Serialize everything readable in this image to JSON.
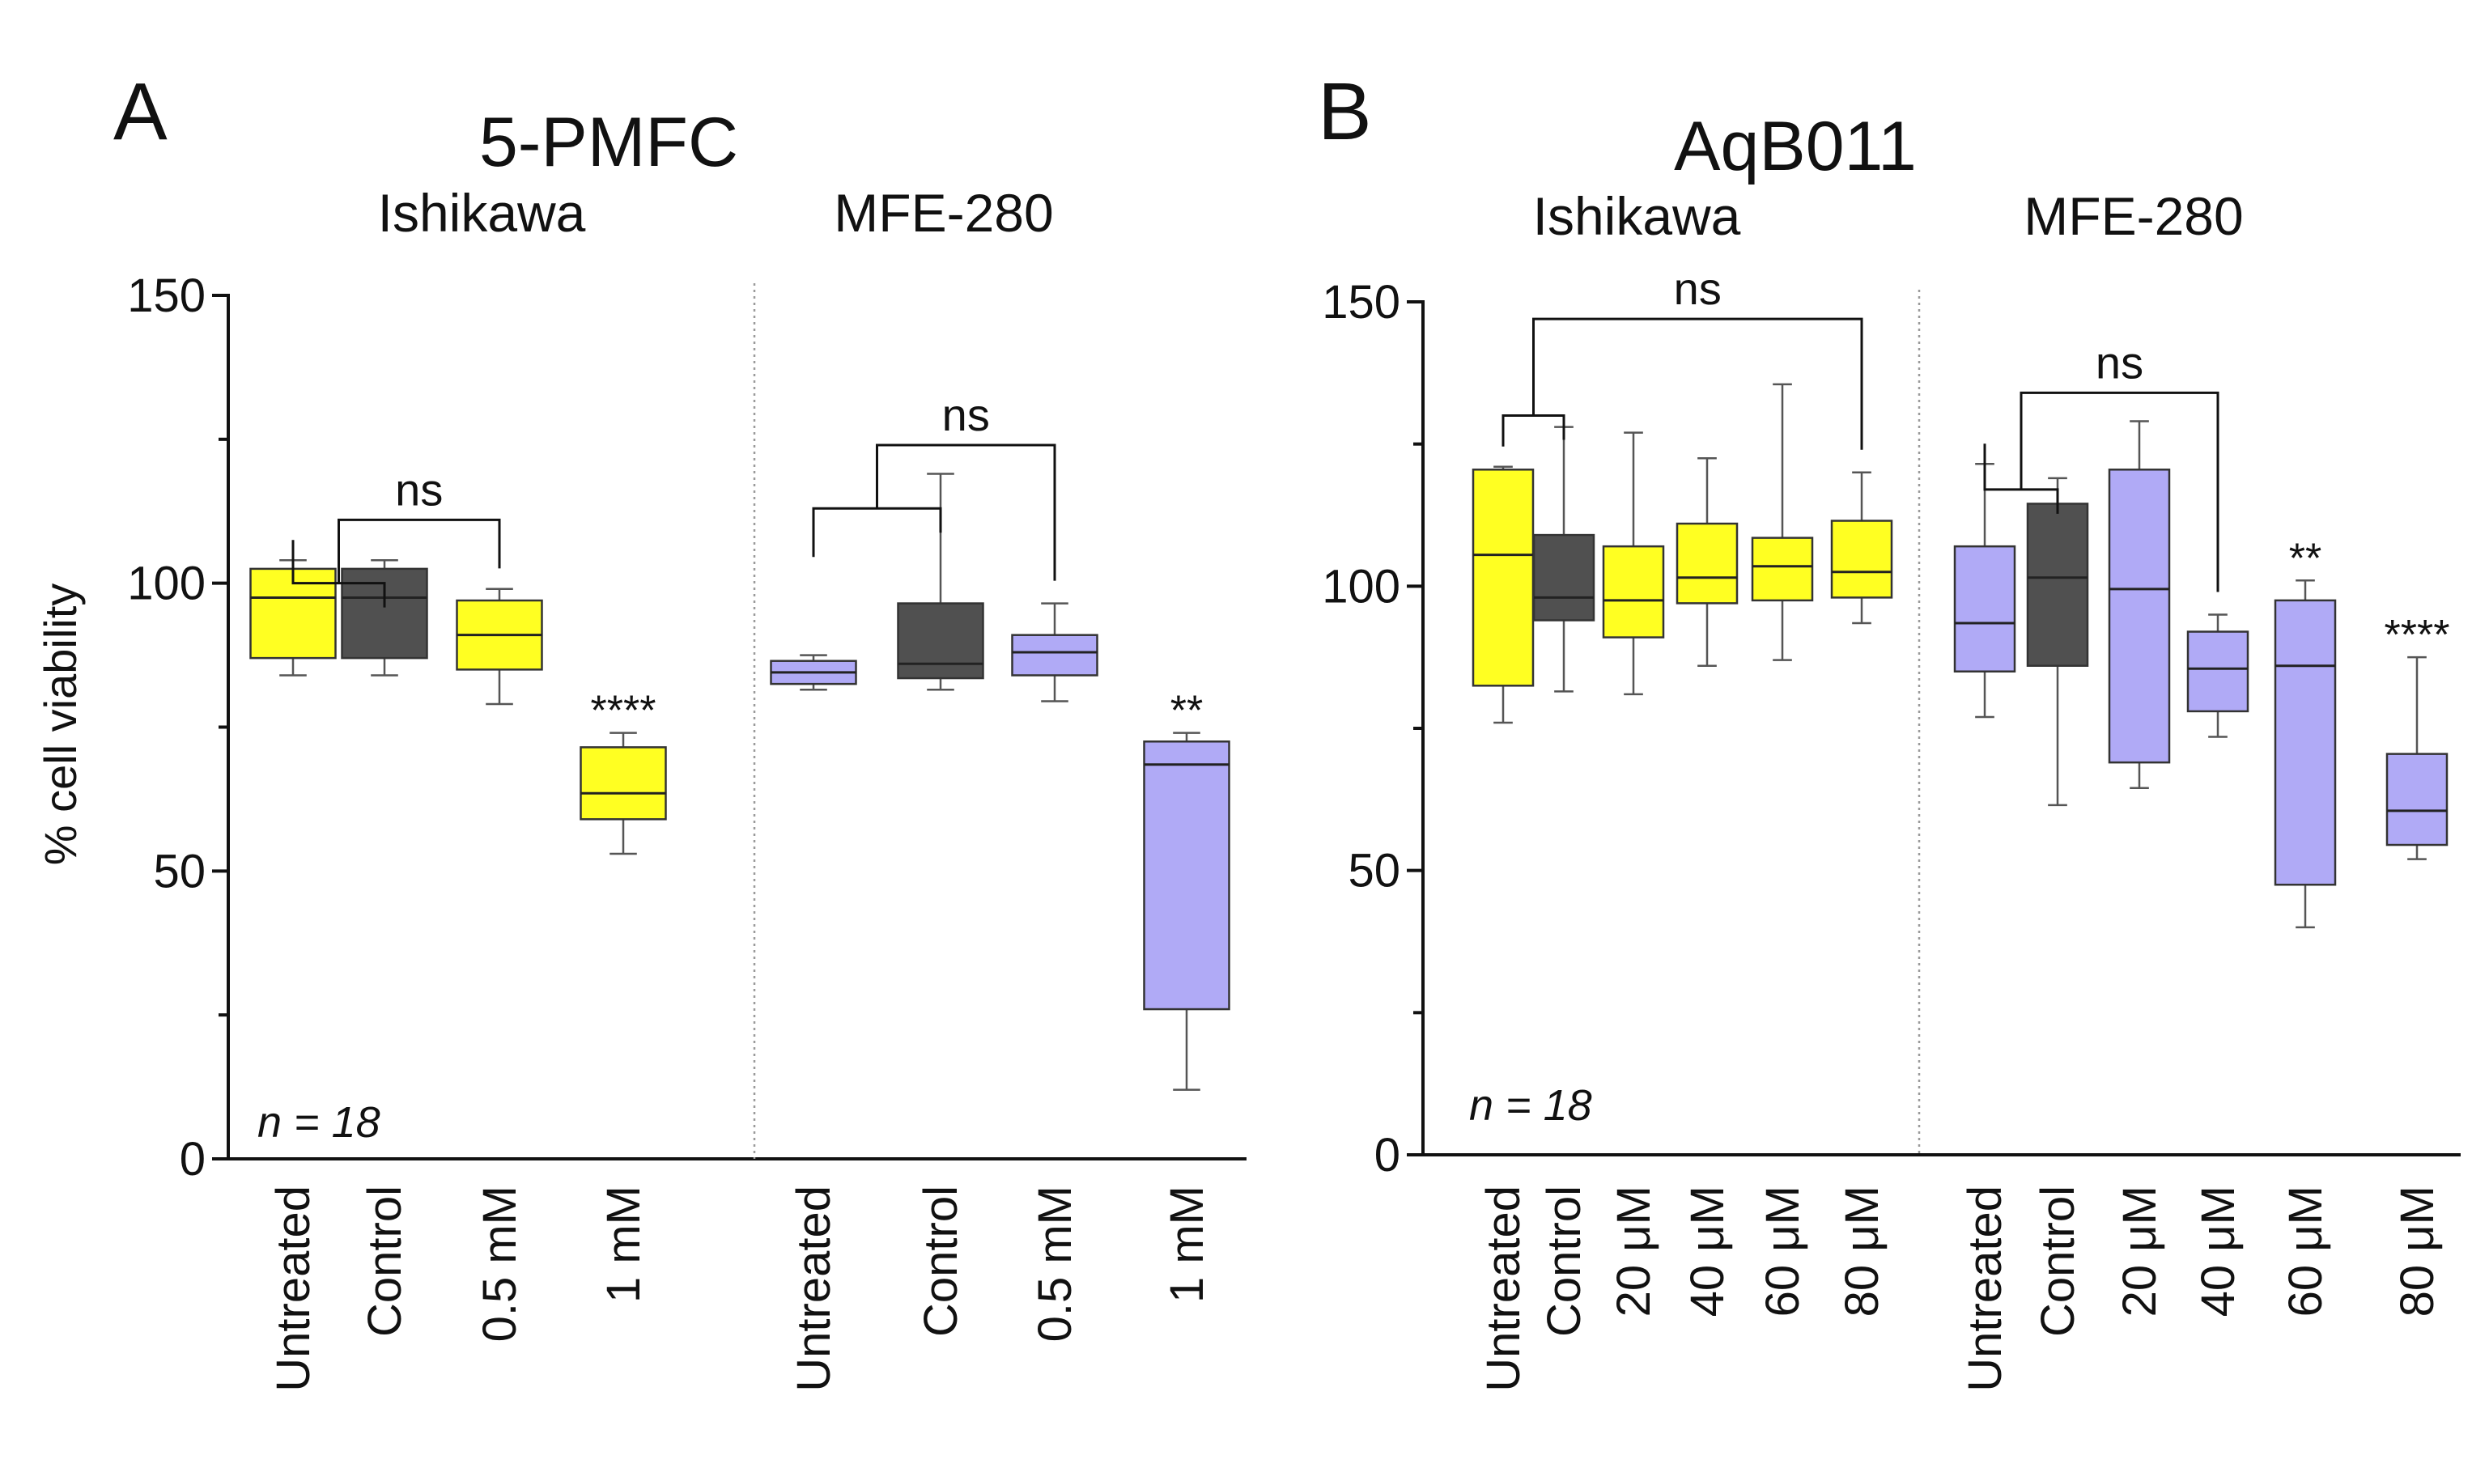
{
  "figure": {
    "panel_labels": [
      "A",
      "B"
    ],
    "n_label": "n = 18",
    "colors": {
      "yellow": "#ffff22",
      "gray": "#505050",
      "lavender": "#b0aaf6"
    }
  },
  "chart_data": [
    {
      "type": "box",
      "panel": "A",
      "title": "5-PMFC",
      "ylabel": "% cell viability",
      "ylim": [
        0,
        150
      ],
      "yticks": [
        0,
        50,
        100,
        150
      ],
      "annotation": "n = 18",
      "groups": [
        {
          "name": "Ishikawa",
          "boxes": [
            {
              "label": "Untreated",
              "min": 84,
              "q1": 87,
              "median": 97.5,
              "q3": 102.5,
              "max": 104,
              "color": "#ffff22"
            },
            {
              "label": "Control",
              "min": 84,
              "q1": 87,
              "median": 97.5,
              "q3": 102.5,
              "max": 104,
              "color": "#505050"
            },
            {
              "label": "0.5 mM",
              "min": 79,
              "q1": 85,
              "median": 91,
              "q3": 97,
              "max": 99,
              "color": "#ffff22"
            },
            {
              "label": "1 mM",
              "min": 53,
              "q1": 59,
              "median": 63.5,
              "q3": 71.5,
              "max": 74,
              "color": "#ffff22",
              "sig": "****"
            }
          ],
          "brackets": [
            {
              "from": 0,
              "to": 1,
              "to2": 2,
              "label": "ns",
              "y": 111
            }
          ]
        },
        {
          "name": "MFE-280",
          "boxes": [
            {
              "label": "Untreated",
              "min": 81.5,
              "q1": 82.5,
              "median": 84.5,
              "q3": 86.5,
              "max": 87.5,
              "color": "#b0aaf6"
            },
            {
              "label": "Control",
              "min": 81.5,
              "q1": 83.5,
              "median": 86,
              "q3": 96.5,
              "max": 119,
              "color": "#505050"
            },
            {
              "label": "0.5 mM",
              "min": 79.5,
              "q1": 84,
              "median": 88,
              "q3": 91,
              "max": 96.5,
              "color": "#b0aaf6"
            },
            {
              "label": "1 mM",
              "min": 12,
              "q1": 26,
              "median": 68.5,
              "q3": 72.5,
              "max": 74,
              "color": "#b0aaf6",
              "sig": "**"
            }
          ],
          "brackets": [
            {
              "from": 0,
              "to": 1,
              "to2": 2,
              "label": "ns",
              "y": 124
            }
          ]
        }
      ]
    },
    {
      "type": "box",
      "panel": "B",
      "title": "AqB011",
      "ylabel": "",
      "ylim": [
        0,
        150
      ],
      "yticks": [
        0,
        50,
        100,
        150
      ],
      "annotation": "n = 18",
      "groups": [
        {
          "name": "Ishikawa",
          "boxes": [
            {
              "label": "Untreated",
              "min": 76,
              "q1": 82.5,
              "median": 105.5,
              "q3": 120.5,
              "max": 121,
              "color": "#ffff22"
            },
            {
              "label": "Control",
              "min": 81.5,
              "q1": 94,
              "median": 98,
              "q3": 109,
              "max": 128,
              "color": "#505050"
            },
            {
              "label": "20 μM",
              "min": 81,
              "q1": 91,
              "median": 97.5,
              "q3": 107,
              "max": 127,
              "color": "#ffff22"
            },
            {
              "label": "40 μM",
              "min": 86,
              "q1": 97,
              "median": 101.5,
              "q3": 111,
              "max": 122.5,
              "color": "#ffff22"
            },
            {
              "label": "60 μM",
              "min": 87,
              "q1": 97.5,
              "median": 103.5,
              "q3": 108.5,
              "max": 135.5,
              "color": "#ffff22"
            },
            {
              "label": "80 μM",
              "min": 93.5,
              "q1": 98,
              "median": 102.5,
              "q3": 111.5,
              "max": 120,
              "color": "#ffff22"
            }
          ],
          "brackets": [
            {
              "from": 0,
              "to": 1,
              "to2": 5,
              "label": "ns",
              "y": 147
            }
          ]
        },
        {
          "name": "MFE-280",
          "boxes": [
            {
              "label": "Untreated",
              "min": 77,
              "q1": 85,
              "median": 93.5,
              "q3": 107,
              "max": 121.5,
              "color": "#b0aaf6"
            },
            {
              "label": "Control",
              "min": 61.5,
              "q1": 86,
              "median": 101.5,
              "q3": 114.5,
              "max": 119,
              "color": "#505050"
            },
            {
              "label": "20 μM",
              "min": 64.5,
              "q1": 69,
              "median": 99.5,
              "q3": 120.5,
              "max": 129,
              "color": "#b0aaf6"
            },
            {
              "label": "40 μM",
              "min": 73.5,
              "q1": 78,
              "median": 85.5,
              "q3": 92,
              "max": 95,
              "color": "#b0aaf6"
            },
            {
              "label": "60 μM",
              "min": 40,
              "q1": 47.5,
              "median": 86,
              "q3": 97.5,
              "max": 101,
              "color": "#b0aaf6",
              "sig": "**"
            },
            {
              "label": "80 μM",
              "min": 52,
              "q1": 54.5,
              "median": 60.5,
              "q3": 70.5,
              "max": 87.5,
              "color": "#b0aaf6",
              "sig": "****"
            }
          ],
          "brackets": [
            {
              "from": 0,
              "to": 1,
              "to2": 3,
              "label": "ns",
              "y": 134
            }
          ]
        }
      ]
    }
  ]
}
